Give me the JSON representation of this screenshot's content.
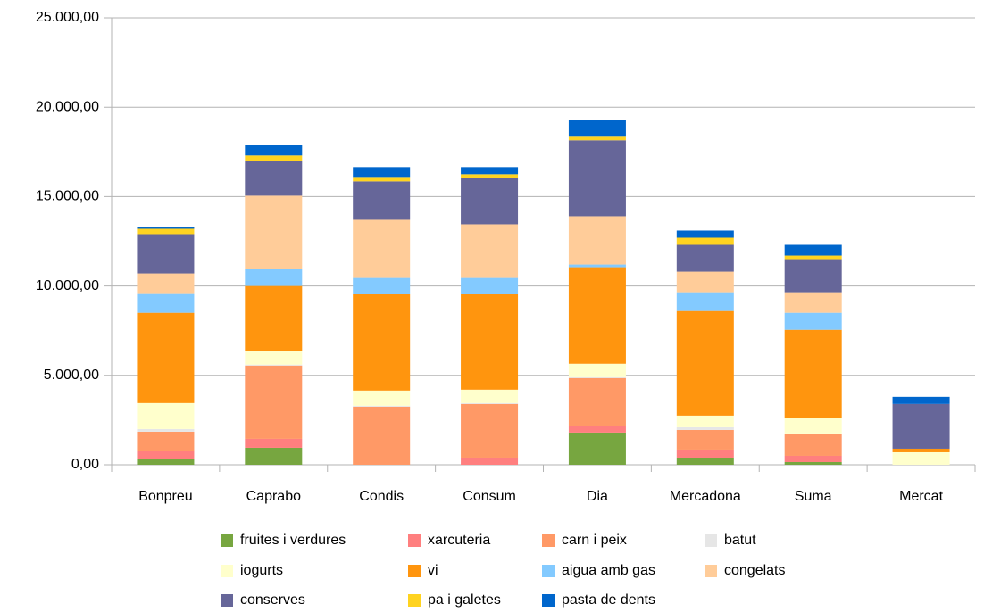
{
  "chart_data": {
    "type": "stacked_bar",
    "categories": [
      "Bonpreu",
      "Caprabo",
      "Condis",
      "Consum",
      "Dia",
      "Mercadona",
      "Suma",
      "Mercat"
    ],
    "series": [
      {
        "name": "fruites i verdures",
        "color": "#77a640",
        "values": [
          300,
          950,
          0,
          0,
          1800,
          400,
          150,
          0
        ]
      },
      {
        "name": "xarcuteria",
        "color": "#ff7f7f",
        "values": [
          450,
          500,
          0,
          400,
          350,
          450,
          350,
          0
        ]
      },
      {
        "name": "carn i peix",
        "color": "#ff9966",
        "values": [
          1100,
          4100,
          3250,
          3000,
          2700,
          1100,
          1200,
          0
        ]
      },
      {
        "name": "batut",
        "color": "#e6e6e6",
        "values": [
          150,
          50,
          50,
          50,
          50,
          150,
          50,
          0
        ]
      },
      {
        "name": "iogurts",
        "color": "#ffffcc",
        "values": [
          1450,
          750,
          850,
          750,
          750,
          650,
          850,
          700
        ]
      },
      {
        "name": "vi",
        "color": "#ff950e",
        "values": [
          5050,
          3650,
          5400,
          5350,
          5400,
          5850,
          4950,
          200
        ]
      },
      {
        "name": "aigua amb gas",
        "color": "#83caff",
        "values": [
          1100,
          950,
          900,
          900,
          150,
          1050,
          950,
          0
        ]
      },
      {
        "name": "congelats",
        "color": "#ffcc99",
        "values": [
          1100,
          4100,
          3250,
          3000,
          2700,
          1150,
          1150,
          0
        ]
      },
      {
        "name": "conserves",
        "color": "#666699",
        "values": [
          2200,
          1950,
          2150,
          2600,
          4250,
          1500,
          1850,
          2500
        ]
      },
      {
        "name": "pa i galetes",
        "color": "#ffd320",
        "values": [
          300,
          300,
          250,
          200,
          200,
          400,
          200,
          0
        ]
      },
      {
        "name": "pasta de dents",
        "color": "#0066cc",
        "values": [
          100,
          600,
          550,
          400,
          950,
          400,
          600,
          400
        ]
      }
    ],
    "ylim": [
      0,
      25000
    ],
    "yticks": [
      {
        "value": 0,
        "label": "0,00"
      },
      {
        "value": 5000,
        "label": "5.000,00"
      },
      {
        "value": 10000,
        "label": "10.000,00"
      },
      {
        "value": 15000,
        "label": "15.000,00"
      },
      {
        "value": 20000,
        "label": "20.000,00"
      },
      {
        "value": 25000,
        "label": "25.000,00"
      }
    ],
    "grid": true,
    "legend": "bottom"
  }
}
